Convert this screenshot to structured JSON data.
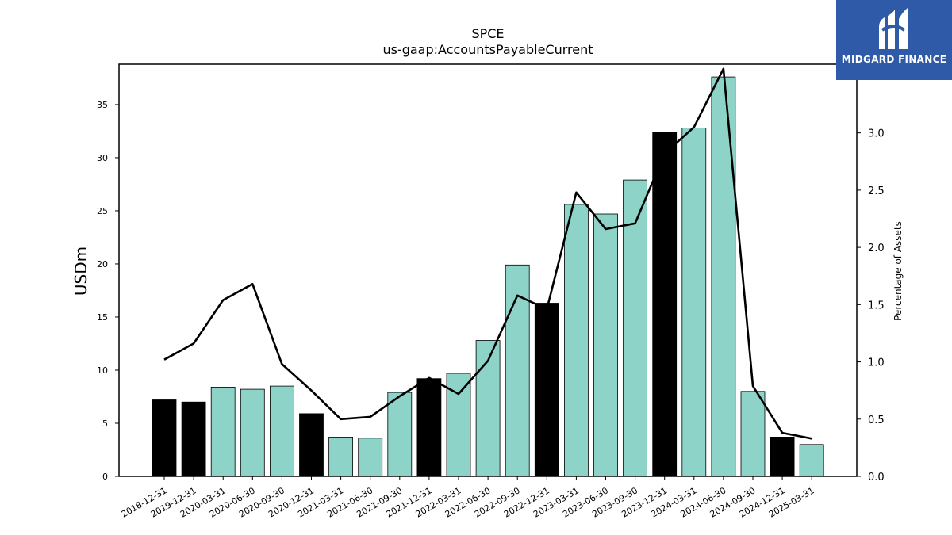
{
  "chart_data": {
    "type": "bar",
    "title": "SPCE",
    "subtitle": "us-gaap:AccountsPayableCurrent",
    "ylabel": "USDm",
    "y2label": "Percentage of Assets",
    "ylim": [
      0,
      38.8
    ],
    "y2lim": [
      0,
      3.6
    ],
    "yticks": [
      0,
      5,
      10,
      15,
      20,
      25,
      30,
      35
    ],
    "y2ticks": [
      "0.0",
      "0.5",
      "1.0",
      "1.5",
      "2.0",
      "2.5",
      "3.0"
    ],
    "categories": [
      "2018-12-31",
      "2019-12-31",
      "2020-03-31",
      "2020-06-30",
      "2020-09-30",
      "2020-12-31",
      "2021-03-31",
      "2021-06-30",
      "2021-09-30",
      "2021-12-31",
      "2022-03-31",
      "2022-06-30",
      "2022-09-30",
      "2022-12-31",
      "2023-03-31",
      "2023-06-30",
      "2023-09-30",
      "2023-12-31",
      "2024-03-31",
      "2024-06-30",
      "2024-09-30",
      "2024-12-31",
      "2025-03-31"
    ],
    "values": [
      7.2,
      7.0,
      8.4,
      8.2,
      8.5,
      5.9,
      3.7,
      3.6,
      7.9,
      9.2,
      9.7,
      12.8,
      19.9,
      16.3,
      25.6,
      24.7,
      27.9,
      32.4,
      32.8,
      37.6,
      8.0,
      3.7,
      3.0
    ],
    "annual": [
      true,
      true,
      false,
      false,
      false,
      true,
      false,
      false,
      false,
      true,
      false,
      false,
      false,
      true,
      false,
      false,
      false,
      true,
      false,
      false,
      false,
      true,
      false
    ],
    "pct_of_assets": [
      1.02,
      1.16,
      1.54,
      1.68,
      0.98,
      0.75,
      0.5,
      0.52,
      0.7,
      0.86,
      0.72,
      1.01,
      1.58,
      1.46,
      2.48,
      2.16,
      2.21,
      2.82,
      3.05,
      3.56,
      0.79,
      0.38,
      0.33
    ],
    "colors": {
      "annual_bar": "#000000",
      "quarter_bar": "#8dd3c7",
      "line": "#000000"
    },
    "grid": false
  },
  "logo": {
    "text": "MIDGARD FINANCE",
    "bg": "#2f5aa8"
  }
}
